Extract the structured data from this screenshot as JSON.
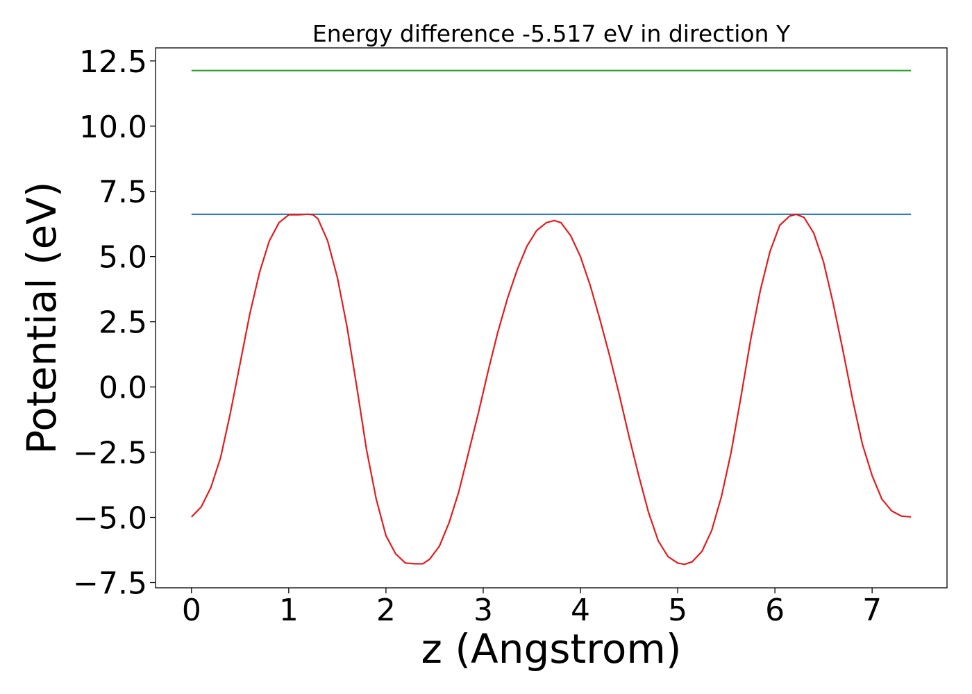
{
  "chart_data": {
    "type": "line",
    "title": "Energy difference -5.517 eV in direction Y",
    "xlabel": "z (Angstrom)",
    "ylabel": "Potential (eV)",
    "xlim": [
      -0.37,
      7.77
    ],
    "ylim": [
      -7.7,
      13.0
    ],
    "xticks": [
      0,
      1,
      2,
      3,
      4,
      5,
      6,
      7
    ],
    "xtick_labels": [
      "0",
      "1",
      "2",
      "3",
      "4",
      "5",
      "6",
      "7"
    ],
    "yticks": [
      -7.5,
      -5.0,
      -2.5,
      0.0,
      2.5,
      5.0,
      7.5,
      10.0,
      12.5
    ],
    "ytick_labels": [
      "−7.5",
      "−5.0",
      "−2.5",
      "0.0",
      "2.5",
      "5.0",
      "7.5",
      "10.0",
      "12.5"
    ],
    "grid": false,
    "legend": "none",
    "series": [
      {
        "color": "#2ca02c",
        "x": [
          0,
          7.4
        ],
        "y": [
          12.13,
          12.13
        ]
      },
      {
        "color": "#1f77b4",
        "x": [
          0,
          7.4
        ],
        "y": [
          6.62,
          6.62
        ]
      },
      {
        "color": "#e41a1c",
        "x": [
          0.0,
          0.1,
          0.2,
          0.3,
          0.4,
          0.5,
          0.6,
          0.7,
          0.8,
          0.9,
          1.0,
          1.1,
          1.2,
          1.25,
          1.3,
          1.4,
          1.5,
          1.6,
          1.7,
          1.8,
          1.9,
          2.0,
          2.1,
          2.2,
          2.3,
          2.38,
          2.45,
          2.55,
          2.65,
          2.75,
          2.85,
          2.95,
          3.05,
          3.15,
          3.25,
          3.35,
          3.45,
          3.55,
          3.65,
          3.73,
          3.8,
          3.9,
          4.0,
          4.1,
          4.2,
          4.3,
          4.4,
          4.5,
          4.6,
          4.7,
          4.8,
          4.9,
          5.0,
          5.07,
          5.15,
          5.25,
          5.35,
          5.45,
          5.55,
          5.65,
          5.75,
          5.85,
          5.95,
          6.05,
          6.15,
          6.22,
          6.3,
          6.4,
          6.5,
          6.6,
          6.7,
          6.8,
          6.9,
          7.0,
          7.1,
          7.2,
          7.3,
          7.4
        ],
        "y": [
          -4.98,
          -4.6,
          -3.85,
          -2.7,
          -1.0,
          0.9,
          2.8,
          4.4,
          5.6,
          6.3,
          6.6,
          6.6,
          6.62,
          6.6,
          6.45,
          5.6,
          4.2,
          2.3,
          0.0,
          -2.4,
          -4.3,
          -5.7,
          -6.4,
          -6.75,
          -6.78,
          -6.78,
          -6.6,
          -6.1,
          -5.2,
          -4.0,
          -2.5,
          -1.0,
          0.6,
          2.1,
          3.4,
          4.5,
          5.4,
          6.0,
          6.3,
          6.38,
          6.3,
          5.8,
          5.0,
          3.9,
          2.6,
          1.2,
          -0.3,
          -1.9,
          -3.4,
          -4.8,
          -5.9,
          -6.5,
          -6.75,
          -6.8,
          -6.7,
          -6.3,
          -5.5,
          -4.2,
          -2.5,
          -0.4,
          1.8,
          3.7,
          5.2,
          6.2,
          6.55,
          6.62,
          6.5,
          5.9,
          4.8,
          3.2,
          1.4,
          -0.5,
          -2.2,
          -3.4,
          -4.3,
          -4.75,
          -4.95,
          -4.98
        ]
      }
    ]
  }
}
